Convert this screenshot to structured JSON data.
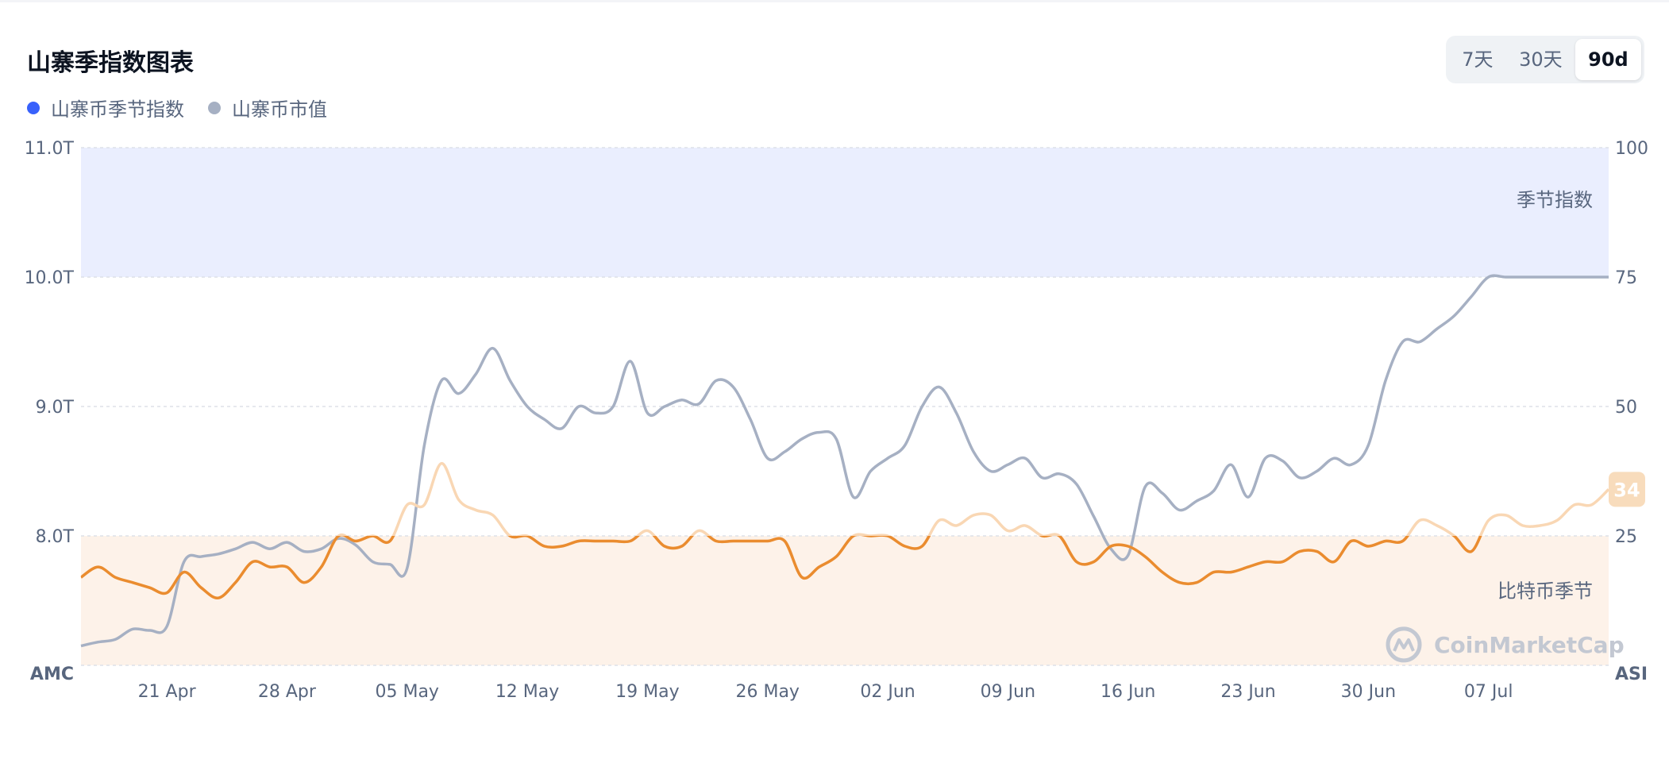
{
  "header": {
    "title": "山寨季指数图表",
    "legend": [
      {
        "label": "山寨币季节指数",
        "color": "#3861fb"
      },
      {
        "label": "山寨币市值",
        "color": "#a6b0c3"
      }
    ],
    "ranges": [
      "7天",
      "30天",
      "90d"
    ],
    "selected_range": "90d"
  },
  "colors": {
    "index_line": "#ea8c2f",
    "index_line_light": "#f9d7b4",
    "market_cap_line": "#a6b0c3",
    "altcoin_zone": "#eaeefe",
    "bitcoin_zone": "#fdf2e9",
    "badge": "#f8dcbc"
  },
  "watermark": {
    "text": "CoinMarketCap",
    "icon": "coinmarketcap-logo-icon"
  },
  "chart_data": {
    "type": "line",
    "x_tick_labels": [
      "21 Apr",
      "28 Apr",
      "05 May",
      "12 May",
      "19 May",
      "26 May",
      "02 Jun",
      "09 Jun",
      "16 Jun",
      "23 Jun",
      "30 Jun",
      "07 Jul"
    ],
    "x_start": "2025-04-16",
    "x_end": "2025-07-14",
    "left_axis": {
      "label": "AMC",
      "ticks": [
        "11.0T",
        "10.0T",
        "9.0T",
        "8.0T"
      ],
      "ylim": [
        7.0,
        11.0
      ]
    },
    "right_axis": {
      "label": "ASI",
      "ticks": [
        "100",
        "75",
        "50",
        "25"
      ],
      "ylim": [
        0,
        100
      ]
    },
    "zones": [
      {
        "label": "季节指数",
        "from": 75,
        "to": 100
      },
      {
        "label": "比特币季节",
        "from": 0,
        "to": 25
      }
    ],
    "latest_value_badge": "34",
    "series": [
      {
        "name": "山寨币季节指数",
        "axis": "right",
        "dates": [
          "2025-04-16",
          "2025-04-17",
          "2025-04-18",
          "2025-04-19",
          "2025-04-20",
          "2025-04-21",
          "2025-04-22",
          "2025-04-23",
          "2025-04-24",
          "2025-04-25",
          "2025-04-26",
          "2025-04-27",
          "2025-04-28",
          "2025-04-29",
          "2025-04-30",
          "2025-05-01",
          "2025-05-02",
          "2025-05-03",
          "2025-05-04",
          "2025-05-05",
          "2025-05-06",
          "2025-05-07",
          "2025-05-08",
          "2025-05-09",
          "2025-05-10",
          "2025-05-11",
          "2025-05-12",
          "2025-05-13",
          "2025-05-14",
          "2025-05-15",
          "2025-05-16",
          "2025-05-17",
          "2025-05-18",
          "2025-05-19",
          "2025-05-20",
          "2025-05-21",
          "2025-05-22",
          "2025-05-23",
          "2025-05-24",
          "2025-05-25",
          "2025-05-26",
          "2025-05-27",
          "2025-05-28",
          "2025-05-29",
          "2025-05-30",
          "2025-05-31",
          "2025-06-01",
          "2025-06-02",
          "2025-06-03",
          "2025-06-04",
          "2025-06-05",
          "2025-06-06",
          "2025-06-07",
          "2025-06-08",
          "2025-06-09",
          "2025-06-10",
          "2025-06-11",
          "2025-06-12",
          "2025-06-13",
          "2025-06-14",
          "2025-06-15",
          "2025-06-16",
          "2025-06-17",
          "2025-06-18",
          "2025-06-19",
          "2025-06-20",
          "2025-06-21",
          "2025-06-22",
          "2025-06-23",
          "2025-06-24",
          "2025-06-25",
          "2025-06-26",
          "2025-06-27",
          "2025-06-28",
          "2025-06-29",
          "2025-06-30",
          "2025-07-01",
          "2025-07-02",
          "2025-07-03",
          "2025-07-04",
          "2025-07-05",
          "2025-07-06",
          "2025-07-07",
          "2025-07-08",
          "2025-07-09",
          "2025-07-10",
          "2025-07-11",
          "2025-07-12",
          "2025-07-13",
          "2025-07-14"
        ],
        "values": [
          17,
          19,
          17,
          16,
          15,
          14,
          18,
          15,
          13,
          16,
          20,
          19,
          19,
          16,
          19,
          25,
          24,
          25,
          24,
          31,
          31,
          39,
          32,
          30,
          29,
          25,
          25,
          23,
          23,
          24,
          24,
          24,
          24,
          26,
          23,
          23,
          26,
          24,
          24,
          24,
          24,
          24,
          17,
          19,
          21,
          25,
          25,
          25,
          23,
          23,
          28,
          27,
          29,
          29,
          26,
          27,
          25,
          25,
          20,
          20,
          23,
          23,
          21,
          18,
          16,
          16,
          18,
          18,
          19,
          20,
          20,
          22,
          22,
          20,
          24,
          23,
          24,
          24,
          28,
          27,
          25,
          22,
          28,
          29,
          27,
          27,
          28,
          31,
          31,
          34
        ]
      },
      {
        "name": "山寨币市值",
        "axis": "left",
        "dates": [
          "2025-04-16",
          "2025-04-17",
          "2025-04-18",
          "2025-04-19",
          "2025-04-20",
          "2025-04-21",
          "2025-04-22",
          "2025-04-23",
          "2025-04-24",
          "2025-04-25",
          "2025-04-26",
          "2025-04-27",
          "2025-04-28",
          "2025-04-29",
          "2025-04-30",
          "2025-05-01",
          "2025-05-02",
          "2025-05-03",
          "2025-05-04",
          "2025-05-05",
          "2025-05-06",
          "2025-05-07",
          "2025-05-08",
          "2025-05-09",
          "2025-05-10",
          "2025-05-11",
          "2025-05-12",
          "2025-05-13",
          "2025-05-14",
          "2025-05-15",
          "2025-05-16",
          "2025-05-17",
          "2025-05-18",
          "2025-05-19",
          "2025-05-20",
          "2025-05-21",
          "2025-05-22",
          "2025-05-23",
          "2025-05-24",
          "2025-05-25",
          "2025-05-26",
          "2025-05-27",
          "2025-05-28",
          "2025-05-29",
          "2025-05-30",
          "2025-05-31",
          "2025-06-01",
          "2025-06-02",
          "2025-06-03",
          "2025-06-04",
          "2025-06-05",
          "2025-06-06",
          "2025-06-07",
          "2025-06-08",
          "2025-06-09",
          "2025-06-10",
          "2025-06-11",
          "2025-06-12",
          "2025-06-13",
          "2025-06-14",
          "2025-06-15",
          "2025-06-16",
          "2025-06-17",
          "2025-06-18",
          "2025-06-19",
          "2025-06-20",
          "2025-06-21",
          "2025-06-22",
          "2025-06-23",
          "2025-06-24",
          "2025-06-25",
          "2025-06-26",
          "2025-06-27",
          "2025-06-28",
          "2025-06-29",
          "2025-06-30",
          "2025-07-01",
          "2025-07-02",
          "2025-07-03",
          "2025-07-04",
          "2025-07-05",
          "2025-07-06",
          "2025-07-07",
          "2025-07-08",
          "2025-07-09",
          "2025-07-10",
          "2025-07-11",
          "2025-07-12",
          "2025-07-13",
          "2025-07-14"
        ],
        "values": [
          7.15,
          7.18,
          7.2,
          7.28,
          7.27,
          7.3,
          7.8,
          7.84,
          7.86,
          7.9,
          7.95,
          7.9,
          7.95,
          7.88,
          7.9,
          7.98,
          7.93,
          7.8,
          7.78,
          7.75,
          8.7,
          9.2,
          9.1,
          9.25,
          9.45,
          9.2,
          9.0,
          8.9,
          8.83,
          9.0,
          8.95,
          9.0,
          9.35,
          8.95,
          9.0,
          9.05,
          9.02,
          9.2,
          9.15,
          8.9,
          8.6,
          8.65,
          8.75,
          8.8,
          8.75,
          8.3,
          8.5,
          8.6,
          8.7,
          9.0,
          9.15,
          8.95,
          8.65,
          8.5,
          8.55,
          8.6,
          8.45,
          8.48,
          8.4,
          8.15,
          7.9,
          7.85,
          8.38,
          8.33,
          8.2,
          8.27,
          8.35,
          8.55,
          8.3,
          8.6,
          8.58,
          8.45,
          8.5,
          8.6,
          8.55,
          8.7,
          9.2,
          9.5,
          9.5,
          9.6,
          9.7,
          9.85,
          10.0,
          10.0,
          10.0,
          10.0,
          10.0,
          10.0,
          10.0,
          10.0
        ]
      }
    ]
  }
}
